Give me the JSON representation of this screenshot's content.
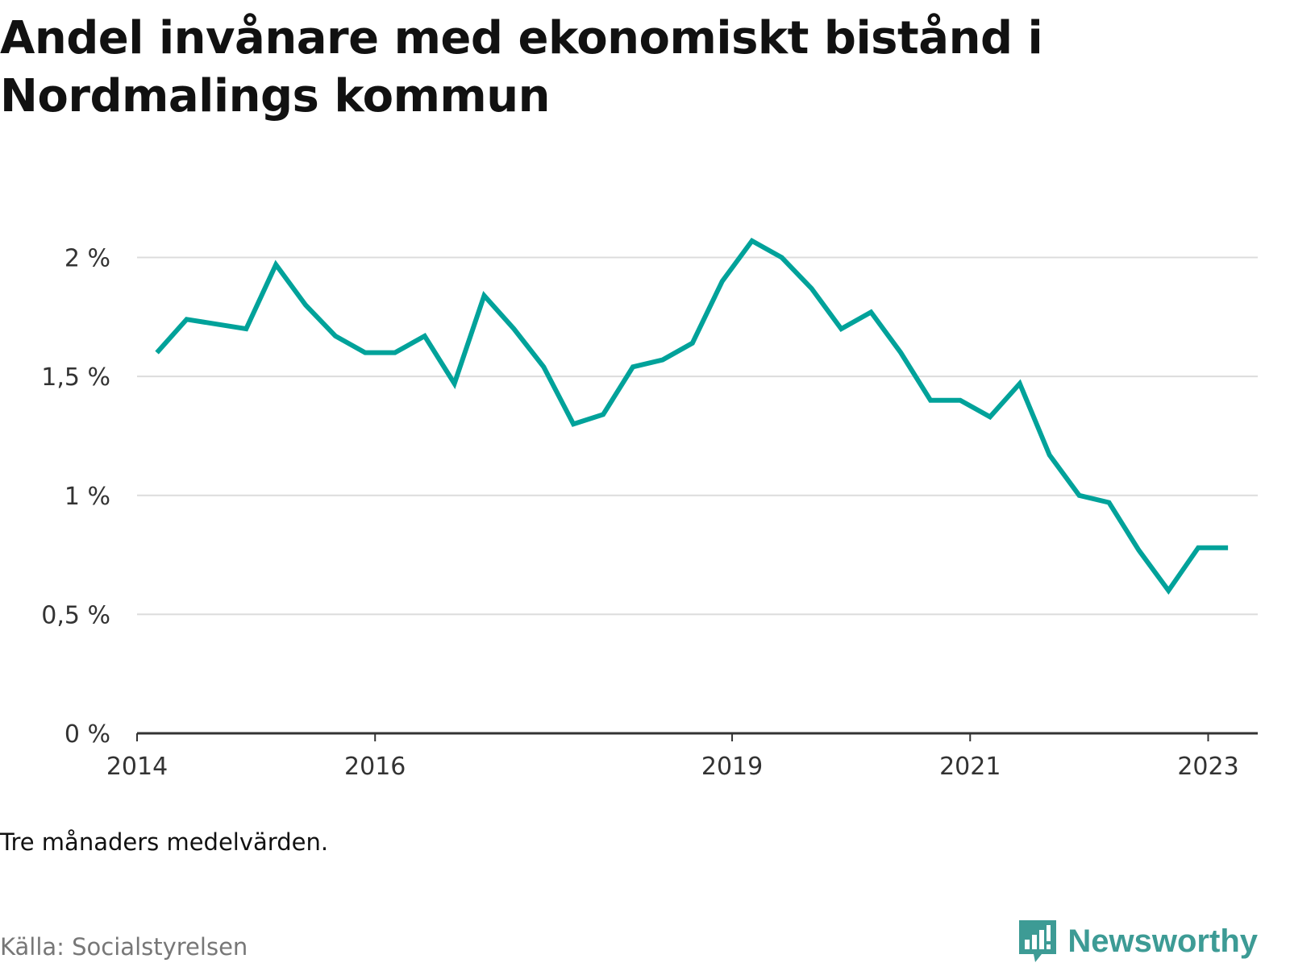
{
  "colors": {
    "line": "#00a29a",
    "grid": "#dcdcdc",
    "axis": "#333333",
    "brand": "#3d9b95"
  },
  "chart_data": {
    "type": "line",
    "title": "Andel invånare med ekonomiskt bistånd i Nordmalings kommun",
    "xlabel": "",
    "ylabel": "",
    "ylim": [
      0,
      2.1
    ],
    "yticks": [
      0,
      0.5,
      1,
      1.5,
      2
    ],
    "ytick_labels": [
      "0 %",
      "0,5 %",
      "1 %",
      "1,5 %",
      "2 %"
    ],
    "xlim": [
      "2014-01",
      "2023-06"
    ],
    "xticks": [
      "2014-01",
      "2016-01",
      "2019-01",
      "2021-01",
      "2023-01"
    ],
    "xtick_labels": [
      "2014",
      "2016",
      "2019",
      "2021",
      "2023"
    ],
    "grid": true,
    "series": [
      {
        "x": [
          "2014-03",
          "2014-06",
          "2014-09",
          "2014-12",
          "2015-03",
          "2015-06",
          "2015-09",
          "2015-12",
          "2016-03",
          "2016-06",
          "2016-09",
          "2016-12",
          "2017-03",
          "2017-06",
          "2017-09",
          "2017-12",
          "2018-03",
          "2018-06",
          "2018-09",
          "2018-12",
          "2019-03",
          "2019-06",
          "2019-09",
          "2019-12",
          "2020-03",
          "2020-06",
          "2020-09",
          "2020-12",
          "2021-03",
          "2021-06",
          "2021-09",
          "2021-12",
          "2022-03",
          "2022-06",
          "2022-09",
          "2022-12",
          "2023-03"
        ],
        "values": [
          1.6,
          1.74,
          1.72,
          1.7,
          1.97,
          1.8,
          1.67,
          1.6,
          1.6,
          1.67,
          1.47,
          1.84,
          1.7,
          1.54,
          1.3,
          1.34,
          1.54,
          1.57,
          1.64,
          1.9,
          2.07,
          2.0,
          1.87,
          1.7,
          1.77,
          1.6,
          1.4,
          1.4,
          1.33,
          1.47,
          1.17,
          1.0,
          0.97,
          0.77,
          0.6,
          0.78,
          0.78
        ]
      }
    ]
  },
  "note": "Tre månaders medelvärden.",
  "source": "Källa: Socialstyrelsen",
  "brand": {
    "name": "Newsworthy",
    "logo_icon": "bar-chart-speech-bubble-icon"
  }
}
